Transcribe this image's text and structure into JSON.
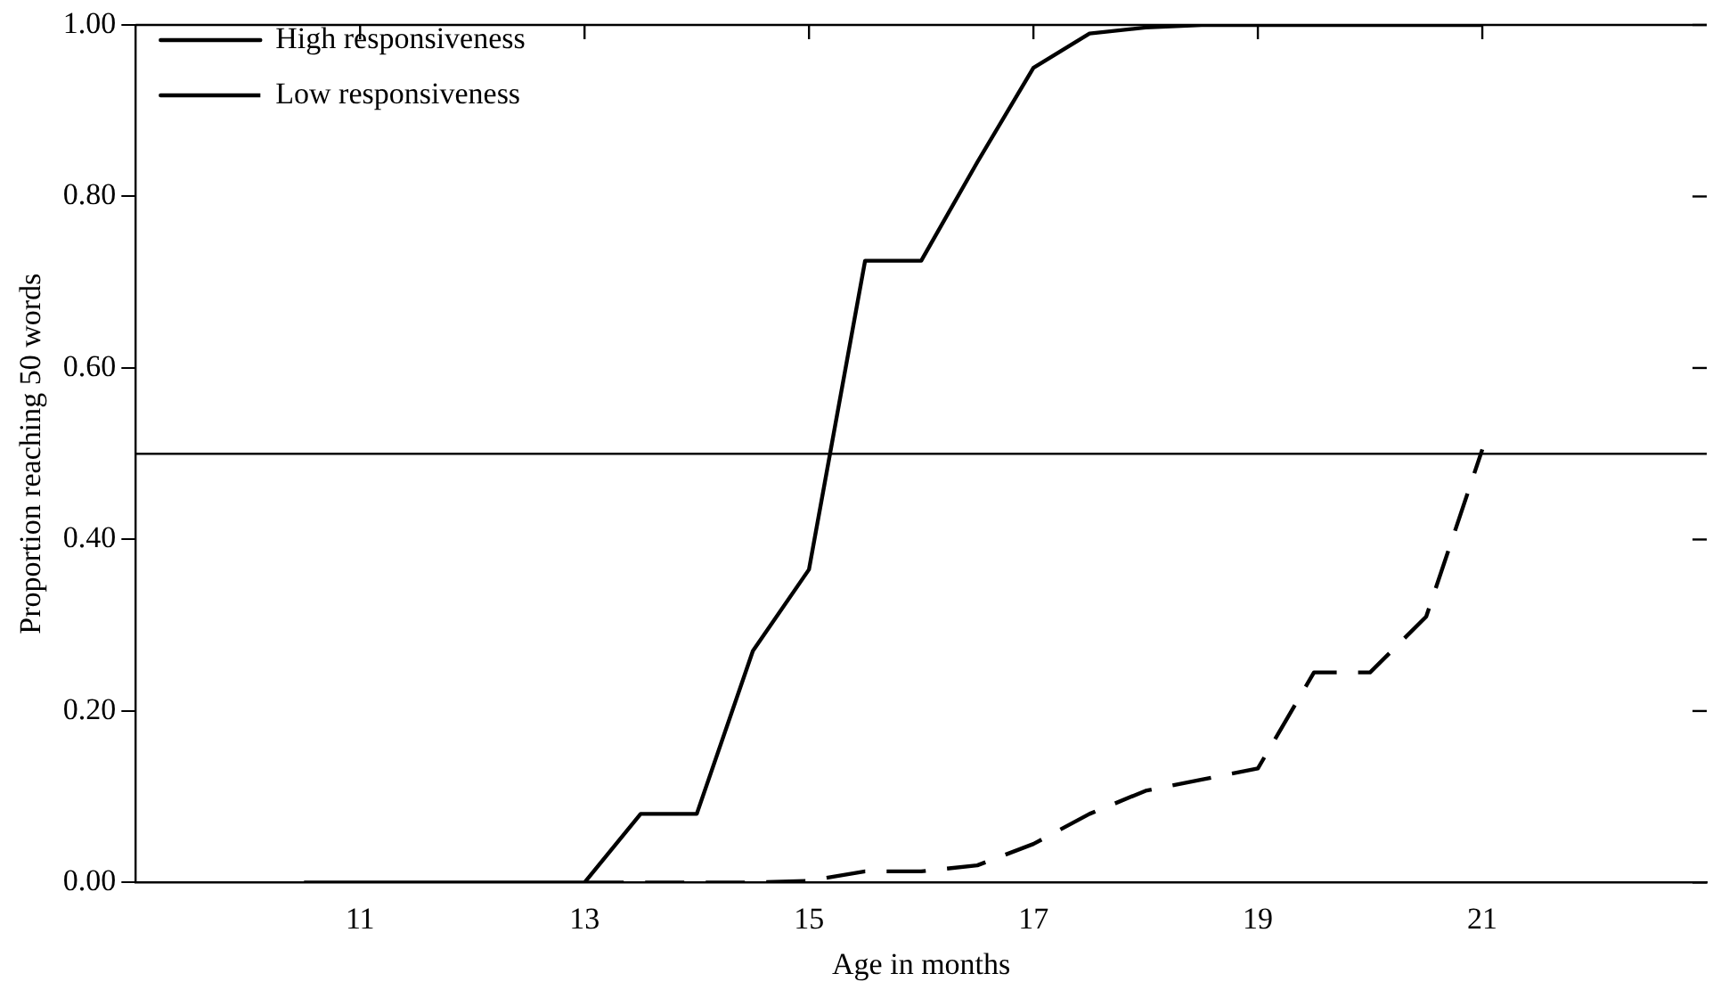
{
  "chart_data": {
    "type": "line",
    "xlabel": "Age in months",
    "ylabel": "Proportion reaching 50 words",
    "xlim": [
      9,
      23
    ],
    "xticks": [
      11,
      13,
      15,
      17,
      19,
      21
    ],
    "ylim": [
      0,
      1
    ],
    "yticks": [
      {
        "value": 0,
        "label": "0.00"
      },
      {
        "value": 0.2,
        "label": "0.20"
      },
      {
        "value": 0.4,
        "label": "0.40"
      },
      {
        "value": 0.6,
        "label": "0.60"
      },
      {
        "value": 0.8,
        "label": "0.80"
      },
      {
        "value": 1,
        "label": "1.00"
      }
    ],
    "grid": false,
    "legend": "top left",
    "marker": "none",
    "ref_lines": [
      {
        "axis": "y",
        "value": 0.5,
        "color": "#000000"
      }
    ],
    "series": [
      {
        "name": "High responsiveness",
        "color": "#000000",
        "line_style": "solid",
        "x": [
          10.5,
          11,
          11.5,
          12,
          12.5,
          13,
          13.5,
          14,
          14.5,
          15,
          15.5,
          16,
          16.5,
          17,
          17.5,
          18,
          18.5,
          19,
          19.5,
          20,
          20.5,
          21
        ],
        "values": [
          0,
          0,
          0,
          0,
          0,
          0,
          0.08,
          0.08,
          0.27,
          0.365,
          0.725,
          0.725,
          0.84,
          0.95,
          0.99,
          0.997,
          1,
          1,
          1,
          1,
          1,
          1
        ]
      },
      {
        "name": "Low responsiveness",
        "color": "#000000",
        "line_style": "dashed",
        "x": [
          13,
          13.5,
          14,
          14.5,
          15,
          15.5,
          16,
          16.5,
          17,
          17.5,
          18,
          18.5,
          19,
          19.5,
          20,
          20.5,
          21
        ],
        "values": [
          0,
          0,
          0,
          0,
          0.002,
          0.013,
          0.013,
          0.02,
          0.045,
          0.08,
          0.107,
          0.12,
          0.133,
          0.245,
          0.245,
          0.31,
          0.505
        ]
      }
    ]
  }
}
